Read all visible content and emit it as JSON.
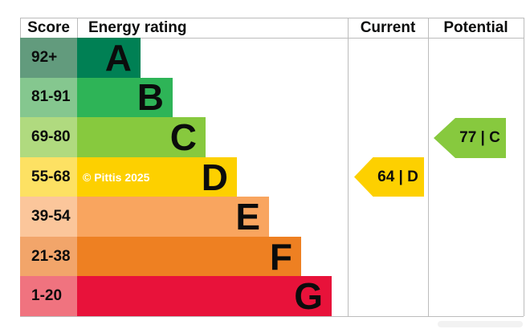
{
  "header": {
    "score": "Score",
    "energy_rating": "Energy rating",
    "current": "Current",
    "potential": "Potential"
  },
  "chart_data": {
    "type": "bar",
    "title": "Energy rating",
    "categories": [
      "A",
      "B",
      "C",
      "D",
      "E",
      "F",
      "G"
    ],
    "score_ranges": [
      "92+",
      "81-91",
      "69-80",
      "55-68",
      "39-54",
      "21-38",
      "1-20"
    ],
    "values": [
      79,
      119,
      160,
      199,
      239,
      279,
      317
    ],
    "grid": false,
    "legend_position": "none",
    "bands": [
      {
        "grade": "A",
        "score": "92+",
        "bar_color": "#008054",
        "score_bg_color": "#629b7d"
      },
      {
        "grade": "B",
        "score": "81-91",
        "bar_color": "#2eb457",
        "score_bg_color": "#85c78f"
      },
      {
        "grade": "C",
        "score": "69-80",
        "bar_color": "#87c93e",
        "score_bg_color": "#b0da7f"
      },
      {
        "grade": "D",
        "score": "55-68",
        "bar_color": "#fdd000",
        "score_bg_color": "#fde163"
      },
      {
        "grade": "E",
        "score": "39-54",
        "bar_color": "#f9a55f",
        "score_bg_color": "#fbc69b"
      },
      {
        "grade": "F",
        "score": "21-38",
        "bar_color": "#ee8022",
        "score_bg_color": "#f2a56a"
      },
      {
        "grade": "G",
        "score": "1-20",
        "bar_color": "#e8123a",
        "score_bg_color": "#f0737f"
      }
    ],
    "markers": {
      "current": {
        "value": 64,
        "grade": "D",
        "label": "64 | D",
        "color": "#fdd000",
        "column": "Current"
      },
      "potential": {
        "value": 77,
        "grade": "C",
        "label": "77 | C",
        "color": "#87c93e",
        "column": "Potential"
      }
    }
  },
  "watermark": "© Pittis 2025"
}
